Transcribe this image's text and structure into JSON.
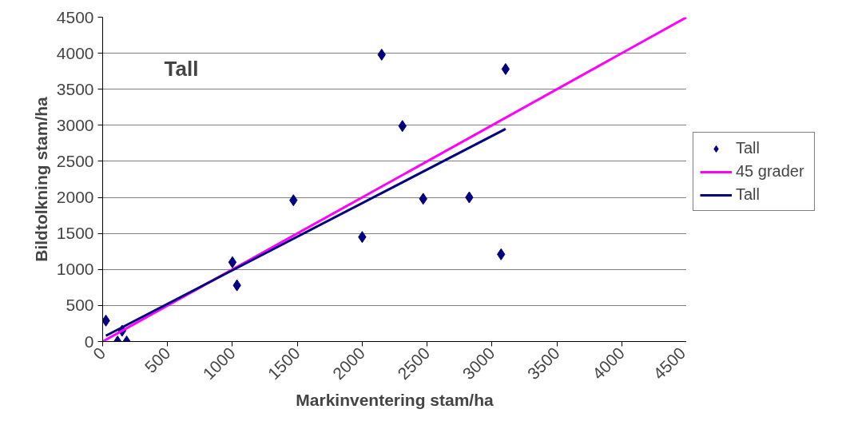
{
  "chart_data": {
    "type": "scatter",
    "title": "Tall",
    "xlabel": "Markinventering stam/ha",
    "ylabel": "Bildtolkning stam/ha",
    "xlim": [
      0,
      4500
    ],
    "ylim": [
      0,
      4500
    ],
    "xticks": [
      0,
      500,
      1000,
      1500,
      2000,
      2500,
      3000,
      3500,
      4000,
      4500
    ],
    "yticks": [
      0,
      500,
      1000,
      1500,
      2000,
      2500,
      3000,
      3500,
      4000,
      4500
    ],
    "grid": "y",
    "legend": "right",
    "series": [
      {
        "name": "Tall",
        "marker": "diamond",
        "color": "#000080",
        "x": [
          25,
          115,
          150,
          185,
          1000,
          1035,
          1470,
          2000,
          2150,
          2310,
          2470,
          2825,
          3070,
          3105
        ],
        "values": [
          290,
          0,
          150,
          0,
          1100,
          780,
          1960,
          1450,
          3980,
          2990,
          1980,
          2000,
          1210,
          3780
        ]
      },
      {
        "name": "45 grader",
        "type": "line",
        "color": "#ff00ff",
        "x": [
          0,
          4500
        ],
        "values": [
          0,
          4500
        ]
      },
      {
        "name": "Tall",
        "type": "line",
        "color": "#000080",
        "x": [
          25,
          3105
        ],
        "values": [
          80,
          2950
        ]
      }
    ]
  }
}
